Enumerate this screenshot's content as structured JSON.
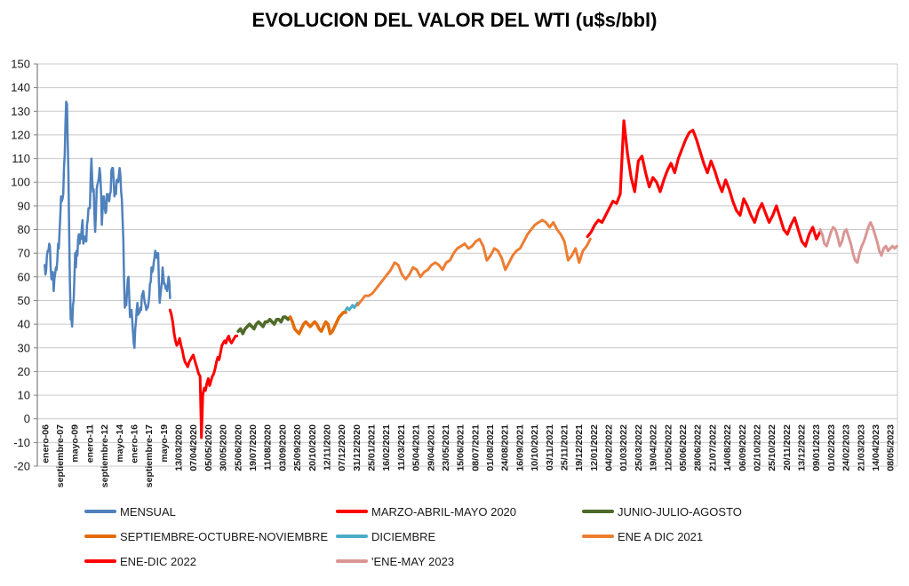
{
  "title": "EVOLUCION DEL VALOR DEL WTI (u$s/bbl)",
  "chart_data": {
    "type": "line",
    "title": "EVOLUCION DEL VALOR DEL WTI (u$s/bbl)",
    "xlabel": "",
    "ylabel": "",
    "ylim": [
      -20,
      150
    ],
    "ytick_step": 10,
    "yticks": [
      150,
      140,
      130,
      120,
      110,
      100,
      90,
      80,
      70,
      60,
      50,
      40,
      30,
      20,
      10,
      0,
      -10,
      -20
    ],
    "grid": "horizontal",
    "legend_position": "bottom",
    "x_categories": [
      "enero-06",
      "septiembre-07",
      "mayo-09",
      "enero-11",
      "septiembre-12",
      "mayo-14",
      "enero-16",
      "septiembre-17",
      "mayo-19",
      "13/03/2020",
      "07/04/2020",
      "05/05/2020",
      "30/05/2020",
      "25/06/2020",
      "19/07/2020",
      "11/08/2020",
      "03/09/2020",
      "25/09/2020",
      "20/10/2020",
      "12/11/2020",
      "07/12/2020",
      "31/12/2020",
      "25/01/2021",
      "16/02/2021",
      "11/03/2021",
      "05/04/2021",
      "29/04/2021",
      "23/05/2021",
      "15/06/2021",
      "08/07/2021",
      "01/08/2021",
      "24/08/2021",
      "16/09/2021",
      "10/10/2021",
      "03/11/2021",
      "25/11/2021",
      "19/12/2021",
      "12/01/2022",
      "04/02/2022",
      "01/03/2022",
      "25/03/2022",
      "19/04/2022",
      "12/05/2022",
      "05/06/2022",
      "28/06/2022",
      "21/07/2022",
      "14/08/2022",
      "06/09/2022",
      "02/10/2022",
      "25/10/2022",
      "20/11/2022",
      "13/12/2022",
      "09/01/2023",
      "01/02/2023",
      "24/02/2023",
      "21/03/2023",
      "14/04/2023",
      "08/05/2023"
    ],
    "legend_rows": [
      [
        0,
        1,
        2
      ],
      [
        3,
        4,
        5
      ],
      [
        6,
        7
      ]
    ],
    "series": [
      {
        "name": "MENSUAL",
        "color": "#4F81BD",
        "width": 2.5,
        "x0": 0,
        "dx": 0.05,
        "values": [
          65,
          61,
          63,
          69,
          71,
          71,
          74,
          73,
          64,
          59,
          59,
          62,
          54,
          59,
          61,
          64,
          63,
          67,
          74,
          72,
          79,
          86,
          94,
          92,
          93,
          95,
          106,
          112,
          125,
          134,
          133,
          117,
          104,
          77,
          57,
          42,
          42,
          39,
          48,
          50,
          59,
          70,
          64,
          71,
          69,
          76,
          78,
          74,
          78,
          76,
          81,
          84,
          74,
          75,
          77,
          77,
          75,
          82,
          84,
          89,
          89,
          89,
          103,
          110,
          101,
          96,
          97,
          86,
          79,
          86,
          97,
          99,
          100,
          102,
          106,
          103,
          95,
          82,
          88,
          94,
          94,
          89,
          87,
          88,
          95,
          95,
          93,
          92,
          95,
          96,
          105,
          106,
          106,
          100,
          94,
          98,
          95,
          101,
          101,
          100,
          103,
          106,
          103,
          96,
          93,
          84,
          76,
          59,
          47,
          51,
          48,
          54,
          59,
          60,
          51,
          43,
          45,
          46,
          42,
          37,
          32,
          30,
          38,
          41,
          46,
          49,
          44,
          45,
          45,
          47,
          46,
          52,
          53,
          54,
          51,
          49,
          48,
          46,
          47,
          47,
          49,
          52,
          57,
          58,
          64,
          62,
          63,
          66,
          68,
          71,
          70,
          68,
          70,
          70,
          57,
          49,
          52,
          55,
          58,
          64,
          60,
          57,
          57,
          55,
          56,
          54,
          57,
          60,
          58,
          51
        ]
      },
      {
        "name": "MARZO-ABRIL-MAYO 2020",
        "color": "#FF0000",
        "width": 3,
        "x0": 8.45,
        "dx": 0.092,
        "values": [
          46,
          44,
          41,
          36,
          33,
          31,
          32,
          34,
          31,
          29,
          26,
          24,
          23,
          22,
          24,
          25,
          26,
          27,
          25,
          23,
          21,
          19,
          18,
          -8,
          10,
          13,
          12,
          15,
          17,
          14,
          16,
          18,
          19,
          21,
          24,
          26,
          25,
          28,
          31,
          32,
          33,
          32,
          34,
          35,
          33,
          32,
          33,
          34,
          35,
          35
        ]
      },
      {
        "name": "JUNIO-JULIO-AGOSTO",
        "color": "#4F6A28",
        "width": 3.6,
        "x0": 13.05,
        "dx": 0.152,
        "values": [
          37,
          38,
          36,
          38,
          39,
          40,
          39,
          38,
          40,
          41,
          40,
          39,
          41,
          41,
          42,
          41,
          40,
          42,
          42,
          41,
          43,
          43,
          42,
          43
        ]
      },
      {
        "name": "SEPTIEMBRE-OCTUBRE-NOVIEMBRE",
        "color": "#E36C0A",
        "width": 3.6,
        "x0": 16.55,
        "dx": 0.15,
        "values": [
          43,
          41,
          38,
          37,
          36,
          38,
          40,
          41,
          40,
          39,
          40,
          41,
          40,
          38,
          37,
          39,
          41,
          40,
          36,
          37,
          39,
          41,
          43,
          44,
          45,
          45
        ]
      },
      {
        "name": "DICIEMBRE",
        "color": "#4BACC6",
        "width": 3,
        "x0": 20.3,
        "dx": 0.114,
        "values": [
          46,
          47,
          46,
          47,
          48,
          47,
          48,
          49
        ]
      },
      {
        "name": "ENE A DIC 2021",
        "color": "#ED7D31",
        "width": 3,
        "x0": 21.1,
        "dx": 0.249,
        "values": [
          48,
          50,
          52,
          52,
          53,
          55,
          57,
          59,
          61,
          63,
          66,
          65,
          61,
          59,
          61,
          64,
          63,
          60,
          62,
          63,
          65,
          66,
          65,
          63,
          66,
          67,
          70,
          72,
          73,
          74,
          72,
          73,
          75,
          76,
          73,
          67,
          69,
          72,
          71,
          68,
          63,
          66,
          69,
          71,
          72,
          75,
          78,
          80,
          82,
          83,
          84,
          83,
          81,
          83,
          80,
          78,
          75,
          67,
          69,
          72,
          66,
          71,
          73,
          76
        ]
      },
      {
        "name": "ENE-DIC 2022",
        "color": "#FF0000",
        "width": 3.2,
        "x0": 36.6,
        "dx": 0.245,
        "values": [
          77,
          79,
          82,
          84,
          83,
          86,
          89,
          92,
          91,
          95,
          126,
          112,
          102,
          96,
          109,
          111,
          104,
          98,
          102,
          100,
          96,
          101,
          105,
          108,
          104,
          110,
          114,
          118,
          121,
          122,
          118,
          113,
          108,
          104,
          109,
          105,
          100,
          96,
          101,
          97,
          92,
          88,
          86,
          93,
          90,
          86,
          83,
          88,
          91,
          87,
          83,
          86,
          90,
          85,
          80,
          78,
          82,
          85,
          80,
          75,
          73,
          78,
          81,
          76,
          79
        ]
      },
      {
        "name": "'ENE-MAY 2023",
        "color": "#D99694",
        "width": 3,
        "x0": 52.28,
        "dx": 0.148,
        "values": [
          80,
          78,
          74,
          73,
          76,
          79,
          81,
          80,
          77,
          73,
          75,
          79,
          80,
          77,
          74,
          70,
          67,
          66,
          70,
          73,
          75,
          78,
          81,
          83,
          81,
          78,
          75,
          71,
          69,
          72,
          73,
          71,
          72,
          73,
          72,
          73
        ]
      }
    ]
  }
}
